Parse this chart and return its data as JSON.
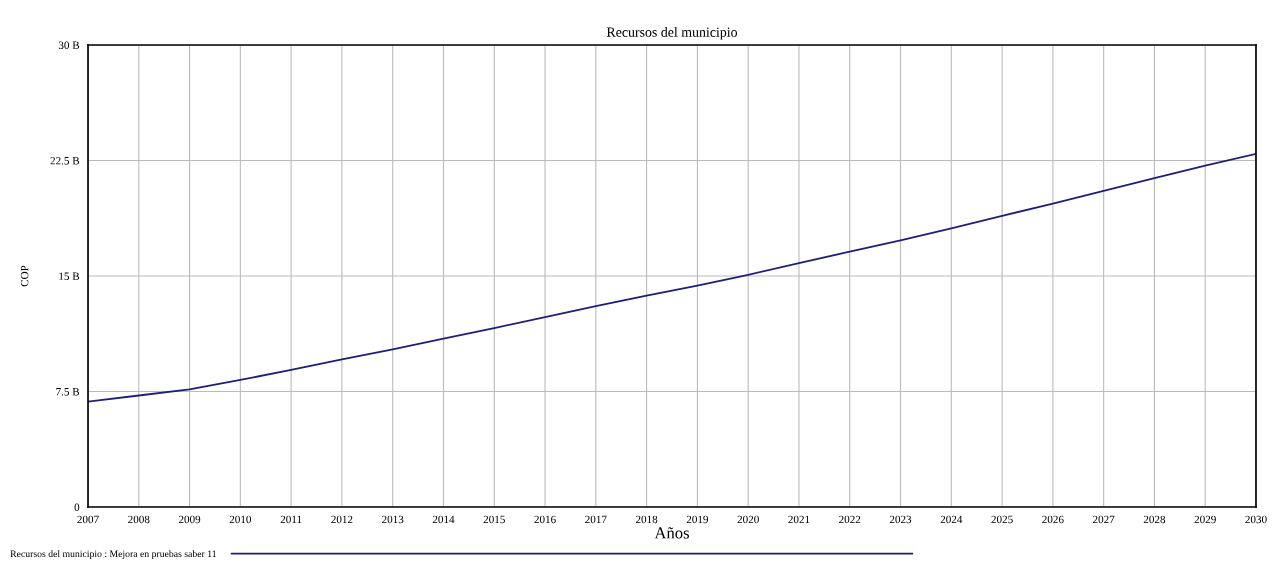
{
  "chart_data": {
    "type": "line",
    "title": "Recursos del municipio",
    "xlabel": "Años",
    "ylabel": "COP",
    "x": [
      2007,
      2008,
      2009,
      2010,
      2011,
      2012,
      2013,
      2014,
      2015,
      2016,
      2017,
      2018,
      2019,
      2020,
      2021,
      2022,
      2023,
      2024,
      2025,
      2026,
      2027,
      2028,
      2029,
      2030
    ],
    "series": [
      {
        "name": "Recursos del municipio : Mejora en pruebas saber 11",
        "color": "#1f1f7a",
        "values": [
          6.84,
          7.24,
          7.64,
          8.25,
          8.91,
          9.58,
          10.24,
          10.93,
          11.62,
          12.33,
          13.05,
          13.72,
          14.37,
          15.08,
          15.84,
          16.58,
          17.31,
          18.1,
          18.91,
          19.7,
          20.52,
          21.36,
          22.17,
          22.93
        ]
      }
    ],
    "xlim": [
      2007,
      2030
    ],
    "xticks": [
      2007,
      2008,
      2009,
      2010,
      2011,
      2012,
      2013,
      2014,
      2015,
      2016,
      2017,
      2018,
      2019,
      2020,
      2021,
      2022,
      2023,
      2024,
      2025,
      2026,
      2027,
      2028,
      2029,
      2030
    ],
    "ylim": [
      0,
      30
    ],
    "yticks": [
      {
        "value": 0,
        "label": "0"
      },
      {
        "value": 7.5,
        "label": "7.5 B"
      },
      {
        "value": 15,
        "label": "15 B"
      },
      {
        "value": 22.5,
        "label": "22.5 B"
      },
      {
        "value": 30,
        "label": "30 B"
      }
    ],
    "grid": true,
    "legend": "bottom",
    "marker": "none",
    "line_style": "solid"
  }
}
